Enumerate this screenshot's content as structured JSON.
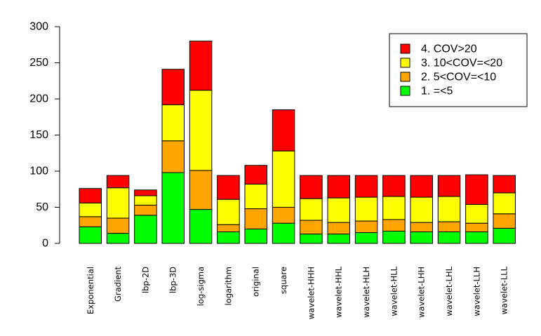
{
  "chart_data": {
    "type": "bar",
    "stacked": true,
    "title": "",
    "xlabel": "",
    "ylabel": "",
    "ylim": [
      0,
      300
    ],
    "yticks": [
      0,
      50,
      100,
      150,
      200,
      250,
      300
    ],
    "grid": false,
    "legend_position": "top-right",
    "categories": [
      "Exponential",
      "Gradient",
      "lbp-2D",
      "lbp-3D",
      "log-sigma",
      "logarithm",
      "original",
      "square",
      "wavelet-HHH",
      "wavelet-HHL",
      "wavelet-HLH",
      "wavelet-HLL",
      "wavelet-LHH",
      "wavelet-LHL",
      "wavelet-LLH",
      "wavelet-LLL"
    ],
    "series": [
      {
        "name": "1. =<5",
        "color": "#00ff00",
        "values": [
          23,
          14,
          39,
          98,
          47,
          16,
          20,
          28,
          13,
          13,
          15,
          17,
          16,
          16,
          16,
          21
        ]
      },
      {
        "name": "2. 5<COV=<10",
        "color": "#ffa500",
        "values": [
          14,
          21,
          14,
          44,
          54,
          10,
          28,
          22,
          19,
          16,
          16,
          16,
          13,
          14,
          12,
          20
        ]
      },
      {
        "name": "3. 10<COV=<20",
        "color": "#ffff00",
        "values": [
          19,
          42,
          13,
          50,
          111,
          35,
          34,
          78,
          30,
          34,
          33,
          32,
          35,
          35,
          26,
          29
        ]
      },
      {
        "name": "4. COV>20",
        "color": "#ff0000",
        "values": [
          20,
          17,
          8,
          49,
          68,
          33,
          26,
          57,
          32,
          31,
          30,
          29,
          30,
          29,
          41,
          24
        ]
      }
    ],
    "legend_entries": [
      "4. COV>20",
      "3. 10<COV=<20",
      "2. 5<COV=<10",
      "1. =<5"
    ]
  }
}
